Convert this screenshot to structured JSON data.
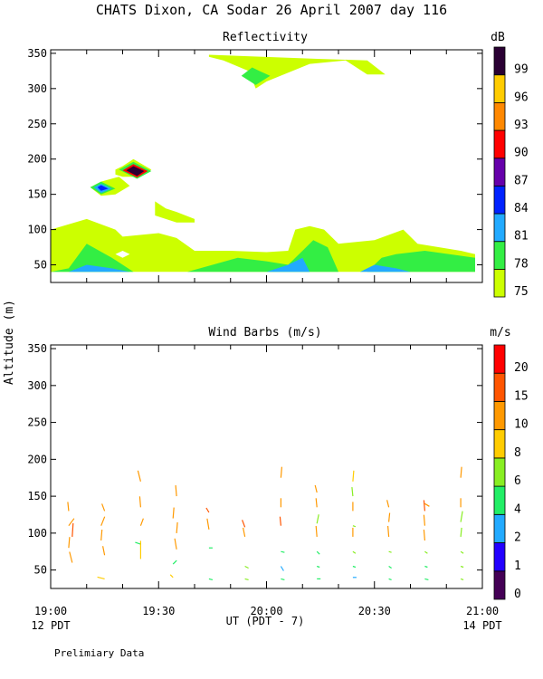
{
  "page": {
    "title": "CHATS Dixon, CA  Sodar  26 April 2007  day 116",
    "footer_note": "Prelimiary Data",
    "y_axis_label": "Altitude (m)",
    "x_axis_label": "UT  (PDT - 7)",
    "left_corner_label": "12 PDT",
    "right_corner_label": "14 PDT"
  },
  "chart_data": [
    {
      "type": "heatmap",
      "title": "Reflectivity",
      "colorbar_unit": "dB",
      "colorbar_levels": [
        "75",
        "78",
        "81",
        "84",
        "87",
        "90",
        "93",
        "96",
        "99"
      ],
      "colorbar_colors": [
        "#ccff00",
        "#33ee44",
        "#22aaff",
        "#0022ff",
        "#6600aa",
        "#ff0000",
        "#ff8800",
        "#ffcc00",
        "#2a0033"
      ],
      "x_ticks": [
        "19:00",
        "19:30",
        "20:00",
        "20:30",
        "21:00"
      ],
      "x_range_minutes_UT": [
        0,
        120
      ],
      "ylim": [
        25,
        355
      ],
      "y_ticks": [
        50,
        100,
        150,
        200,
        250,
        300,
        350
      ],
      "regions": [
        {
          "level": "75",
          "points": [
            [
              0,
              40
            ],
            [
              0,
              100
            ],
            [
              10,
              115
            ],
            [
              18,
              100
            ],
            [
              20,
              90
            ],
            [
              30,
              95
            ],
            [
              35,
              88
            ],
            [
              40,
              70
            ],
            [
              50,
              70
            ],
            [
              60,
              68
            ],
            [
              66,
              70
            ],
            [
              68,
              100
            ],
            [
              72,
              105
            ],
            [
              76,
              100
            ],
            [
              80,
              80
            ],
            [
              90,
              85
            ],
            [
              98,
              100
            ],
            [
              102,
              80
            ],
            [
              108,
              75
            ],
            [
              114,
              70
            ],
            [
              118,
              65
            ],
            [
              118,
              40
            ]
          ]
        },
        {
          "level": "78",
          "points": [
            [
              0,
              40
            ],
            [
              5,
              45
            ],
            [
              10,
              80
            ],
            [
              17,
              60
            ],
            [
              23,
              40
            ],
            [
              38,
              40
            ],
            [
              45,
              50
            ],
            [
              52,
              60
            ],
            [
              60,
              55
            ],
            [
              66,
              50
            ],
            [
              70,
              70
            ],
            [
              73,
              85
            ],
            [
              77,
              75
            ],
            [
              80,
              40
            ],
            [
              88,
              40
            ],
            [
              92,
              60
            ],
            [
              96,
              65
            ],
            [
              104,
              70
            ],
            [
              118,
              60
            ],
            [
              118,
              40
            ]
          ]
        },
        {
          "level": "75",
          "points": [
            [
              18,
              185
            ],
            [
              20,
              190
            ],
            [
              23,
              200
            ],
            [
              28,
              185
            ],
            [
              25,
              175
            ],
            [
              20,
              175
            ],
            [
              18,
              178
            ]
          ]
        },
        {
          "level": "75",
          "points": [
            [
              11,
              160
            ],
            [
              14,
              168
            ],
            [
              19,
              175
            ],
            [
              22,
              162
            ],
            [
              18,
              150
            ],
            [
              14,
              148
            ]
          ]
        },
        {
          "level": "75",
          "points": [
            [
              29,
              140
            ],
            [
              32,
              130
            ],
            [
              35,
              125
            ],
            [
              40,
              115
            ],
            [
              40,
              110
            ],
            [
              35,
              110
            ],
            [
              29,
              120
            ]
          ]
        },
        {
          "level": "75",
          "points": [
            [
              44,
              348
            ],
            [
              75,
              342
            ],
            [
              88,
              340
            ],
            [
              93,
              320
            ],
            [
              88,
              320
            ],
            [
              82,
              340
            ],
            [
              72,
              335
            ],
            [
              60,
              310
            ],
            [
              57,
              300
            ],
            [
              55,
              325
            ],
            [
              48,
              340
            ],
            [
              44,
              345
            ]
          ]
        },
        {
          "level": "78",
          "points": [
            [
              56,
              330
            ],
            [
              58,
              325
            ],
            [
              61,
              318
            ],
            [
              57,
              305
            ],
            [
              53,
              318
            ]
          ]
        },
        {
          "level": "78",
          "points": [
            [
              11,
              160
            ],
            [
              14,
              168
            ],
            [
              18,
              158
            ],
            [
              14,
              150
            ]
          ]
        },
        {
          "level": "81",
          "points": [
            [
              12,
              160
            ],
            [
              14,
              165
            ],
            [
              17,
              158
            ],
            [
              14,
              152
            ]
          ]
        },
        {
          "level": "84",
          "points": [
            [
              13,
              160
            ],
            [
              14,
              163
            ],
            [
              16,
              158
            ],
            [
              14,
              155
            ]
          ]
        },
        {
          "level": "78",
          "points": [
            [
              19,
              185
            ],
            [
              23,
              196
            ],
            [
              28,
              183
            ],
            [
              24,
              172
            ]
          ]
        },
        {
          "level": "90",
          "points": [
            [
              20,
              184
            ],
            [
              23,
              193
            ],
            [
              27,
              183
            ],
            [
              24,
              174
            ]
          ]
        },
        {
          "level": "99",
          "points": [
            [
              21,
              184
            ],
            [
              23,
              190
            ],
            [
              26,
              183
            ],
            [
              24,
              176
            ]
          ]
        },
        {
          "level": "81",
          "points": [
            [
              5,
              40
            ],
            [
              10,
              50
            ],
            [
              17,
              45
            ],
            [
              22,
              40
            ]
          ]
        },
        {
          "level": "81",
          "points": [
            [
              60,
              40
            ],
            [
              66,
              50
            ],
            [
              70,
              60
            ],
            [
              72,
              40
            ]
          ]
        },
        {
          "level": "81",
          "points": [
            [
              86,
              40
            ],
            [
              90,
              50
            ],
            [
              96,
              45
            ],
            [
              100,
              40
            ]
          ]
        }
      ],
      "white_holes": [
        [
          [
            18,
            65
          ],
          [
            20,
            70
          ],
          [
            22,
            65
          ],
          [
            20,
            60
          ]
        ]
      ]
    },
    {
      "type": "scatter",
      "title": "Wind Barbs (m/s)",
      "colorbar_unit": "m/s",
      "colorbar_levels": [
        "0",
        "1",
        "2",
        "4",
        "6",
        "8",
        "10",
        "15",
        "20"
      ],
      "colorbar_colors": [
        "#440055",
        "#2200ff",
        "#22aaff",
        "#22ee66",
        "#88ee22",
        "#ffcc00",
        "#ff9900",
        "#ff5500",
        "#ff0000"
      ],
      "x_ticks": [
        "19:00",
        "19:30",
        "20:00",
        "20:30",
        "21:00"
      ],
      "x_range_minutes_UT": [
        0,
        120
      ],
      "ylim": [
        25,
        355
      ],
      "y_ticks": [
        50,
        100,
        150,
        200,
        250,
        300,
        350
      ],
      "barbs": [
        {
          "x": 5,
          "y": 130,
          "dx": -1,
          "dy": -10,
          "color": "#ff9900"
        },
        {
          "x": 5,
          "y": 110,
          "dx": 6,
          "dy": -8,
          "color": "#ff9900"
        },
        {
          "x": 6,
          "y": 95,
          "dx": 1,
          "dy": -15,
          "color": "#ff5500"
        },
        {
          "x": 5,
          "y": 80,
          "dx": 1,
          "dy": -12,
          "color": "#ff9900"
        },
        {
          "x": 6,
          "y": 60,
          "dx": -3,
          "dy": -12,
          "color": "#ff9900"
        },
        {
          "x": 15,
          "y": 130,
          "dx": -3,
          "dy": -8,
          "color": "#ff9900"
        },
        {
          "x": 14,
          "y": 110,
          "dx": 4,
          "dy": -10,
          "color": "#ff9900"
        },
        {
          "x": 14,
          "y": 90,
          "dx": 1,
          "dy": -12,
          "color": "#ff9900"
        },
        {
          "x": 15,
          "y": 70,
          "dx": -2,
          "dy": -10,
          "color": "#ff9900"
        },
        {
          "x": 15,
          "y": 38,
          "dx": -8,
          "dy": -2,
          "color": "#ffcc00"
        },
        {
          "x": 25,
          "y": 170,
          "dx": -3,
          "dy": -12,
          "color": "#ff9900"
        },
        {
          "x": 25,
          "y": 135,
          "dx": -1,
          "dy": -12,
          "color": "#ff9900"
        },
        {
          "x": 25,
          "y": 110,
          "dx": 3,
          "dy": -8,
          "color": "#ff9900"
        },
        {
          "x": 25,
          "y": 85,
          "dx": -6,
          "dy": -2,
          "color": "#22ee66"
        },
        {
          "x": 25,
          "y": 65,
          "dx": 0,
          "dy": -20,
          "color": "#ffcc00"
        },
        {
          "x": 35,
          "y": 150,
          "dx": -1,
          "dy": -12,
          "color": "#ff9900"
        },
        {
          "x": 34,
          "y": 120,
          "dx": 1,
          "dy": -12,
          "color": "#ff9900"
        },
        {
          "x": 35,
          "y": 100,
          "dx": 1,
          "dy": -12,
          "color": "#ff9900"
        },
        {
          "x": 35,
          "y": 78,
          "dx": -2,
          "dy": -12,
          "color": "#ff9900"
        },
        {
          "x": 34,
          "y": 58,
          "dx": 4,
          "dy": -4,
          "color": "#22ee66"
        },
        {
          "x": 34,
          "y": 40,
          "dx": -3,
          "dy": -3,
          "color": "#ffcc00"
        },
        {
          "x": 44,
          "y": 128,
          "dx": -3,
          "dy": -5,
          "color": "#ff5500"
        },
        {
          "x": 44,
          "y": 105,
          "dx": -2,
          "dy": -12,
          "color": "#ff9900"
        },
        {
          "x": 44,
          "y": 80,
          "dx": 4,
          "dy": 0,
          "color": "#22ee66"
        },
        {
          "x": 44,
          "y": 38,
          "dx": 4,
          "dy": 1,
          "color": "#22ee66"
        },
        {
          "x": 54,
          "y": 108,
          "dx": -3,
          "dy": -8,
          "color": "#ff5500"
        },
        {
          "x": 54,
          "y": 95,
          "dx": -2,
          "dy": -10,
          "color": "#ff9900"
        },
        {
          "x": 54,
          "y": 55,
          "dx": 4,
          "dy": 2,
          "color": "#88ee22"
        },
        {
          "x": 54,
          "y": 38,
          "dx": 4,
          "dy": 1,
          "color": "#88ee22"
        },
        {
          "x": 64,
          "y": 175,
          "dx": 1,
          "dy": -12,
          "color": "#ff9900"
        },
        {
          "x": 64,
          "y": 135,
          "dx": 0,
          "dy": -10,
          "color": "#ff9900"
        },
        {
          "x": 64,
          "y": 110,
          "dx": -1,
          "dy": -10,
          "color": "#ff5500"
        },
        {
          "x": 64,
          "y": 75,
          "dx": 4,
          "dy": 1,
          "color": "#22ee66"
        },
        {
          "x": 64,
          "y": 55,
          "dx": 3,
          "dy": 5,
          "color": "#22aaff"
        },
        {
          "x": 64,
          "y": 38,
          "dx": 4,
          "dy": 1,
          "color": "#22ee66"
        },
        {
          "x": 74,
          "y": 155,
          "dx": -2,
          "dy": -8,
          "color": "#ff9900"
        },
        {
          "x": 74,
          "y": 135,
          "dx": -1,
          "dy": -10,
          "color": "#ff9900"
        },
        {
          "x": 74,
          "y": 113,
          "dx": 2,
          "dy": -10,
          "color": "#88ee22"
        },
        {
          "x": 74,
          "y": 95,
          "dx": -1,
          "dy": -12,
          "color": "#ff9900"
        },
        {
          "x": 74,
          "y": 75,
          "dx": 3,
          "dy": 3,
          "color": "#22ee66"
        },
        {
          "x": 74,
          "y": 55,
          "dx": 3,
          "dy": 1,
          "color": "#22ee66"
        },
        {
          "x": 74,
          "y": 38,
          "dx": 4,
          "dy": 0,
          "color": "#22ee66"
        },
        {
          "x": 84,
          "y": 170,
          "dx": 1,
          "dy": -12,
          "color": "#ffcc00"
        },
        {
          "x": 84,
          "y": 150,
          "dx": -1,
          "dy": -10,
          "color": "#88ee22"
        },
        {
          "x": 84,
          "y": 130,
          "dx": 0,
          "dy": -10,
          "color": "#ff9900"
        },
        {
          "x": 84,
          "y": 110,
          "dx": 3,
          "dy": 1,
          "color": "#88ee22"
        },
        {
          "x": 84,
          "y": 95,
          "dx": 0,
          "dy": -10,
          "color": "#ff9900"
        },
        {
          "x": 84,
          "y": 75,
          "dx": 3,
          "dy": 2,
          "color": "#88ee22"
        },
        {
          "x": 84,
          "y": 55,
          "dx": 3,
          "dy": 1,
          "color": "#22ee66"
        },
        {
          "x": 84,
          "y": 40,
          "dx": 4,
          "dy": 0,
          "color": "#22aaff"
        },
        {
          "x": 94,
          "y": 135,
          "dx": -2,
          "dy": -8,
          "color": "#ff9900"
        },
        {
          "x": 94,
          "y": 115,
          "dx": 1,
          "dy": -10,
          "color": "#ff9900"
        },
        {
          "x": 94,
          "y": 95,
          "dx": -1,
          "dy": -12,
          "color": "#ff9900"
        },
        {
          "x": 94,
          "y": 75,
          "dx": 3,
          "dy": 1,
          "color": "#88ee22"
        },
        {
          "x": 94,
          "y": 55,
          "dx": 3,
          "dy": 2,
          "color": "#22ee66"
        },
        {
          "x": 94,
          "y": 38,
          "dx": 3,
          "dy": 1,
          "color": "#22ee66"
        },
        {
          "x": 104,
          "y": 140,
          "dx": 5,
          "dy": 3,
          "color": "#ff9900"
        },
        {
          "x": 104,
          "y": 130,
          "dx": -1,
          "dy": -12,
          "color": "#ff5500"
        },
        {
          "x": 104,
          "y": 110,
          "dx": -1,
          "dy": -12,
          "color": "#ff9900"
        },
        {
          "x": 104,
          "y": 90,
          "dx": -1,
          "dy": -12,
          "color": "#ff9900"
        },
        {
          "x": 104,
          "y": 75,
          "dx": 3,
          "dy": 2,
          "color": "#88ee22"
        },
        {
          "x": 104,
          "y": 55,
          "dx": 3,
          "dy": 1,
          "color": "#22ee66"
        },
        {
          "x": 104,
          "y": 38,
          "dx": 4,
          "dy": 1,
          "color": "#22ee66"
        },
        {
          "x": 114,
          "y": 175,
          "dx": 1,
          "dy": -12,
          "color": "#ff9900"
        },
        {
          "x": 114,
          "y": 135,
          "dx": 0,
          "dy": -10,
          "color": "#ff9900"
        },
        {
          "x": 114,
          "y": 115,
          "dx": 2,
          "dy": -12,
          "color": "#88ee22"
        },
        {
          "x": 114,
          "y": 95,
          "dx": 1,
          "dy": -10,
          "color": "#88ee22"
        },
        {
          "x": 114,
          "y": 75,
          "dx": 3,
          "dy": 2,
          "color": "#88ee22"
        },
        {
          "x": 114,
          "y": 55,
          "dx": 3,
          "dy": 1,
          "color": "#88ee22"
        },
        {
          "x": 114,
          "y": 38,
          "dx": 3,
          "dy": 1,
          "color": "#88ee22"
        }
      ]
    }
  ]
}
